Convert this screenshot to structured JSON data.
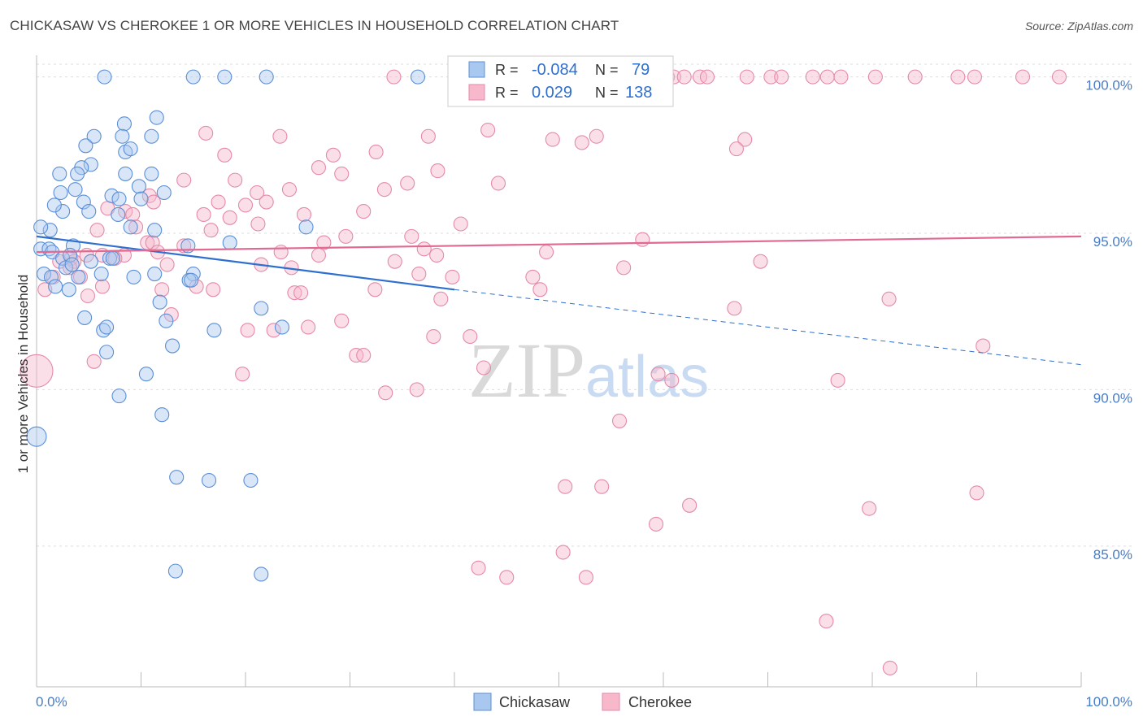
{
  "header": {
    "title": "CHICKASAW VS CHEROKEE 1 OR MORE VEHICLES IN HOUSEHOLD CORRELATION CHART",
    "source": "Source: ZipAtlas.com"
  },
  "colors": {
    "chickasaw_fill": "#a9c8f0",
    "chickasaw_stroke": "#5b8fd6",
    "chickasaw_line": "#2e6fcf",
    "cherokee_fill": "#f7b8cc",
    "cherokee_stroke": "#e58aa8",
    "cherokee_line": "#e06a92",
    "tick_label": "#4a7cc7",
    "grid": "#dddddd"
  },
  "legend_box": {
    "r_label": "R =",
    "n_label": "N =",
    "rows": [
      {
        "r": "-0.084",
        "n": "79"
      },
      {
        "r": "0.029",
        "n": "138"
      }
    ]
  },
  "watermark": {
    "part1": "ZIP",
    "part2": "atlas"
  },
  "chart_data": {
    "type": "scatter",
    "title": "CHICKASAW VS CHEROKEE 1 OR MORE VEHICLES IN HOUSEHOLD CORRELATION CHART",
    "xlabel": "",
    "ylabel": "1 or more Vehicles in Household",
    "xlim": [
      0,
      100
    ],
    "ylim": [
      80.5,
      100.9
    ],
    "x_tick_labels": [
      "0.0%",
      "100.0%"
    ],
    "y_ticks": [
      85,
      90,
      95,
      100
    ],
    "y_tick_labels": [
      "85.0%",
      "90.0%",
      "95.0%",
      "100.0%"
    ],
    "grid": true,
    "legend_position": "bottom-center",
    "series": [
      {
        "name": "Chickasaw",
        "r": -0.084,
        "n": 79,
        "trend": {
          "x0": 0,
          "y0": 94.9,
          "x1": 40,
          "y1": 93.2,
          "x_end": 100,
          "y_end": 90.8
        },
        "points": [
          [
            6.5,
            100
          ],
          [
            15,
            100
          ],
          [
            18,
            100
          ],
          [
            22,
            100
          ],
          [
            36.5,
            100
          ],
          [
            11.5,
            98.7
          ],
          [
            8.4,
            98.5
          ],
          [
            8.2,
            98.1
          ],
          [
            5.5,
            98.1
          ],
          [
            11,
            98.1
          ],
          [
            4.7,
            97.8
          ],
          [
            8.5,
            97.6
          ],
          [
            9,
            97.7
          ],
          [
            5.2,
            97.2
          ],
          [
            4.3,
            97.1
          ],
          [
            3.9,
            96.9
          ],
          [
            2.2,
            96.9
          ],
          [
            8.5,
            96.9
          ],
          [
            11,
            96.9
          ],
          [
            7.2,
            96.2
          ],
          [
            9.8,
            96.5
          ],
          [
            2.3,
            96.3
          ],
          [
            3.7,
            96.4
          ],
          [
            12.2,
            96.3
          ],
          [
            7.9,
            96.1
          ],
          [
            10,
            96.1
          ],
          [
            2.5,
            95.7
          ],
          [
            1.7,
            95.9
          ],
          [
            4.5,
            96
          ],
          [
            5,
            95.7
          ],
          [
            7.8,
            95.6
          ],
          [
            1.3,
            95.1
          ],
          [
            0.4,
            95.2
          ],
          [
            9,
            95.2
          ],
          [
            11.3,
            95.1
          ],
          [
            25.8,
            95.2
          ],
          [
            0.4,
            94.5
          ],
          [
            1.2,
            94.5
          ],
          [
            3.5,
            94.6
          ],
          [
            1.5,
            94.4
          ],
          [
            14.5,
            94.6
          ],
          [
            18.5,
            94.7
          ],
          [
            2.5,
            94.2
          ],
          [
            3.2,
            94.3
          ],
          [
            5.2,
            94.1
          ],
          [
            7,
            94.2
          ],
          [
            7.3,
            94.2
          ],
          [
            2.8,
            93.9
          ],
          [
            3.4,
            94
          ],
          [
            0.7,
            93.7
          ],
          [
            1.4,
            93.6
          ],
          [
            4,
            93.6
          ],
          [
            6.2,
            93.7
          ],
          [
            9.3,
            93.6
          ],
          [
            15,
            93.7
          ],
          [
            14.6,
            93.5
          ],
          [
            1.8,
            93.3
          ],
          [
            3.1,
            93.2
          ],
          [
            11.8,
            92.8
          ],
          [
            21.5,
            92.6
          ],
          [
            4.6,
            92.3
          ],
          [
            12.4,
            92.2
          ],
          [
            6.4,
            91.9
          ],
          [
            6.7,
            92
          ],
          [
            17,
            91.9
          ],
          [
            23.5,
            92
          ],
          [
            13,
            91.4
          ],
          [
            6.7,
            91.2
          ],
          [
            10.5,
            90.5
          ],
          [
            7.9,
            89.8
          ],
          [
            12,
            89.2
          ],
          [
            13.4,
            87.2
          ],
          [
            16.5,
            87.1
          ],
          [
            20.5,
            87.1
          ],
          [
            13.3,
            84.2
          ],
          [
            21.5,
            84.1
          ],
          [
            0,
            88.5
          ],
          [
            14.8,
            93.5
          ],
          [
            11.3,
            93.7
          ]
        ]
      },
      {
        "name": "Cherokee",
        "r": 0.029,
        "n": 138,
        "trend": {
          "x0": 0,
          "y0": 94.4,
          "x1": 100,
          "y1": 94.9
        },
        "points": [
          [
            34.2,
            100
          ],
          [
            44.5,
            100
          ],
          [
            45.5,
            100
          ],
          [
            54.8,
            100
          ],
          [
            56.6,
            100
          ],
          [
            57.7,
            100
          ],
          [
            59.7,
            100
          ],
          [
            60.4,
            100
          ],
          [
            61,
            100
          ],
          [
            62,
            100
          ],
          [
            63.5,
            100
          ],
          [
            64.2,
            100
          ],
          [
            68,
            100
          ],
          [
            70.3,
            100
          ],
          [
            71.3,
            100
          ],
          [
            74.3,
            100
          ],
          [
            75.7,
            100
          ],
          [
            77,
            100
          ],
          [
            80.3,
            100
          ],
          [
            84.1,
            100
          ],
          [
            88.2,
            100
          ],
          [
            89.8,
            100
          ],
          [
            94.4,
            100
          ],
          [
            97.9,
            100
          ],
          [
            43.2,
            98.3
          ],
          [
            53.6,
            98.1
          ],
          [
            16.2,
            98.2
          ],
          [
            23.3,
            98.1
          ],
          [
            37.5,
            98.1
          ],
          [
            49.4,
            98.0
          ],
          [
            52.2,
            97.9
          ],
          [
            67.8,
            98
          ],
          [
            67,
            97.7
          ],
          [
            32.5,
            97.6
          ],
          [
            18,
            97.5
          ],
          [
            28.4,
            97.5
          ],
          [
            38.4,
            97.0
          ],
          [
            27,
            97.1
          ],
          [
            29.2,
            96.9
          ],
          [
            14.1,
            96.7
          ],
          [
            19,
            96.7
          ],
          [
            35.5,
            96.6
          ],
          [
            33.3,
            96.4
          ],
          [
            44.2,
            96.6
          ],
          [
            21.1,
            96.3
          ],
          [
            24.2,
            96.4
          ],
          [
            10.8,
            96.2
          ],
          [
            11.2,
            96
          ],
          [
            17.4,
            96
          ],
          [
            20,
            95.9
          ],
          [
            22,
            96
          ],
          [
            6.8,
            95.8
          ],
          [
            8.5,
            95.7
          ],
          [
            9.2,
            95.6
          ],
          [
            16,
            95.6
          ],
          [
            18.5,
            95.5
          ],
          [
            25.6,
            95.6
          ],
          [
            31.3,
            95.7
          ],
          [
            9.5,
            95.2
          ],
          [
            16.7,
            95.1
          ],
          [
            21.2,
            95.3
          ],
          [
            40.6,
            95.3
          ],
          [
            5.8,
            95.1
          ],
          [
            29.6,
            94.9
          ],
          [
            35.9,
            94.9
          ],
          [
            58,
            94.8
          ],
          [
            10.6,
            94.7
          ],
          [
            14.1,
            94.6
          ],
          [
            11.1,
            94.7
          ],
          [
            27.5,
            94.7
          ],
          [
            37.1,
            94.5
          ],
          [
            48.8,
            94.4
          ],
          [
            4.8,
            94.3
          ],
          [
            3.3,
            94.2
          ],
          [
            6.3,
            94.3
          ],
          [
            8.4,
            94.3
          ],
          [
            11.6,
            94.4
          ],
          [
            23.4,
            94.4
          ],
          [
            27,
            94.3
          ],
          [
            2.2,
            94.1
          ],
          [
            3.6,
            94.1
          ],
          [
            7.5,
            94.2
          ],
          [
            34.3,
            94.1
          ],
          [
            12.5,
            94
          ],
          [
            21.5,
            94
          ],
          [
            38.3,
            94.3
          ],
          [
            69.3,
            94.1
          ],
          [
            56.2,
            93.9
          ],
          [
            3.2,
            93.9
          ],
          [
            24.4,
            93.9
          ],
          [
            36.6,
            93.7
          ],
          [
            4.2,
            93.6
          ],
          [
            1.6,
            93.6
          ],
          [
            47.5,
            93.6
          ],
          [
            39.8,
            93.6
          ],
          [
            15.3,
            93.3
          ],
          [
            12,
            93.2
          ],
          [
            16.9,
            93.2
          ],
          [
            0.8,
            93.2
          ],
          [
            24.7,
            93.1
          ],
          [
            25.3,
            93.1
          ],
          [
            32.4,
            93.2
          ],
          [
            48.2,
            93.2
          ],
          [
            6.3,
            93.3
          ],
          [
            4.9,
            93
          ],
          [
            38.7,
            92.9
          ],
          [
            81.6,
            92.9
          ],
          [
            66.8,
            92.6
          ],
          [
            29.2,
            92.2
          ],
          [
            12.9,
            92.4
          ],
          [
            26,
            92
          ],
          [
            20.2,
            91.9
          ],
          [
            22.7,
            91.9
          ],
          [
            38,
            91.7
          ],
          [
            41.5,
            91.7
          ],
          [
            90.6,
            91.4
          ],
          [
            30.6,
            91.1
          ],
          [
            31.3,
            91.1
          ],
          [
            42.8,
            90.7
          ],
          [
            5.5,
            90.9
          ],
          [
            19.7,
            90.5
          ],
          [
            59.5,
            90.5
          ],
          [
            60.8,
            90.3
          ],
          [
            76.7,
            90.3
          ],
          [
            33.4,
            89.9
          ],
          [
            36.4,
            90
          ],
          [
            55.8,
            89.0
          ],
          [
            50.6,
            86.9
          ],
          [
            54.1,
            86.9
          ],
          [
            62.5,
            86.3
          ],
          [
            90,
            86.7
          ],
          [
            79.7,
            86.2
          ],
          [
            59.3,
            85.7
          ],
          [
            42.3,
            84.3
          ],
          [
            50.4,
            84.8
          ],
          [
            45,
            84
          ],
          [
            52.6,
            84
          ],
          [
            75.6,
            82.6
          ],
          [
            81.7,
            81.1
          ],
          [
            0,
            90.6
          ]
        ]
      }
    ]
  }
}
